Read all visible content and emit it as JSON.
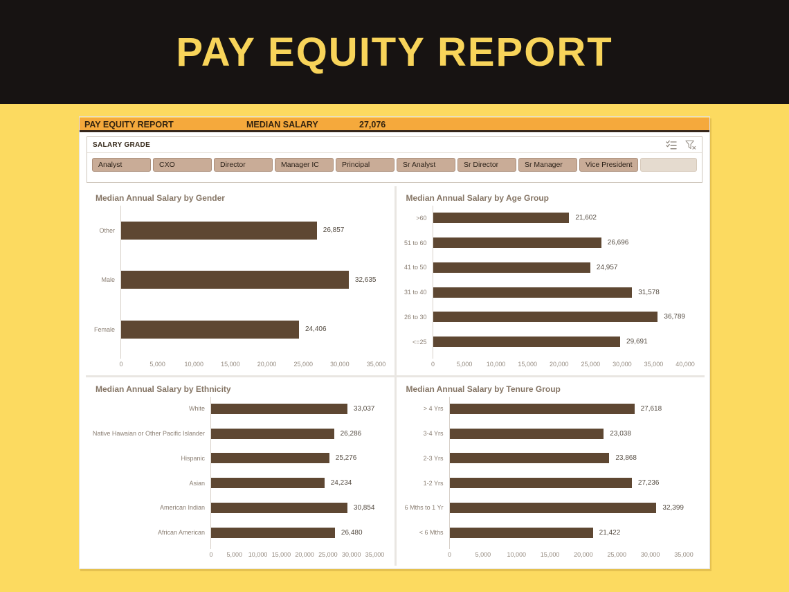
{
  "banner": {
    "title": "PAY EQUITY REPORT"
  },
  "report_header": {
    "title": "PAY EQUITY REPORT",
    "metric_label": "MEDIAN SALARY",
    "metric_value": "27,076"
  },
  "slicer": {
    "title": "SALARY GRADE",
    "options": [
      "Analyst",
      "CXO",
      "Director",
      "Manager IC",
      "Principal",
      "Sr Analyst",
      "Sr Director",
      "Sr Manager",
      "Vice President"
    ],
    "icons": [
      "multi-select-icon",
      "clear-filter-icon"
    ]
  },
  "colors": {
    "bar_brown": "#5E4732",
    "header_orange": "#F5A93C",
    "page_yellow": "#FCDA60",
    "banner_black": "#171312",
    "banner_text_yellow": "#F8D45A",
    "chip_tan": "#C9AC97"
  },
  "chart_data": [
    {
      "type": "bar",
      "orientation": "horizontal",
      "title": "Median Annual Salary by Gender",
      "categories": [
        "Other",
        "Male",
        "Female"
      ],
      "values": [
        26857,
        32635,
        24406
      ],
      "value_labels": [
        "26,857",
        "32,635",
        "24,406"
      ],
      "xlim": [
        0,
        35000
      ],
      "tick_step": 5000,
      "tick_labels": [
        "0",
        "5,000",
        "10,000",
        "15,000",
        "20,000",
        "25,000",
        "30,000",
        "35,000"
      ],
      "grid": false,
      "legend": false
    },
    {
      "type": "bar",
      "orientation": "horizontal",
      "title": "Median Annual Salary by Age Group",
      "categories": [
        ">60",
        "51 to 60",
        "41 to 50",
        "31 to 40",
        "26 to 30",
        "<=25"
      ],
      "values": [
        21602,
        26696,
        24957,
        31578,
        36789,
        29691
      ],
      "value_labels": [
        "21,602",
        "26,696",
        "24,957",
        "31,578",
        "36,789",
        "29,691"
      ],
      "xlim": [
        0,
        40000
      ],
      "tick_step": 5000,
      "tick_labels": [
        "0",
        "5,000",
        "10,000",
        "15,000",
        "20,000",
        "25,000",
        "30,000",
        "35,000",
        "40,000"
      ],
      "grid": false,
      "legend": false
    },
    {
      "type": "bar",
      "orientation": "horizontal",
      "title": "Median Annual Salary by Ethnicity",
      "categories": [
        "White",
        "Native Hawaian or Other Pacific Islander",
        "Hispanic",
        "Asian",
        "American Indian",
        "African American"
      ],
      "values": [
        33037,
        26286,
        25276,
        24234,
        30854,
        26480
      ],
      "value_labels": [
        "33,037",
        "26,286",
        "25,276",
        "24,234",
        "30,854",
        "26,480"
      ],
      "xlim": [
        0,
        35000
      ],
      "tick_step": 5000,
      "tick_labels": [
        "0",
        "5,000",
        "10,000",
        "15,000",
        "20,000",
        "25,000",
        "30,000",
        "35,000"
      ],
      "grid": false,
      "legend": false
    },
    {
      "type": "bar",
      "orientation": "horizontal",
      "title": "Median Annual Salary by Tenure Group",
      "categories": [
        "> 4 Yrs",
        "3-4 Yrs",
        "2-3 Yrs",
        "1-2 Yrs",
        "6 Mths to 1 Yr",
        "< 6 Mths"
      ],
      "values": [
        27618,
        23038,
        23868,
        27236,
        32399,
        21422
      ],
      "value_labels": [
        "27,618",
        "23,038",
        "23,868",
        "27,236",
        "32,399",
        "21,422"
      ],
      "xlim": [
        0,
        35000
      ],
      "tick_step": 5000,
      "tick_labels": [
        "0",
        "5,000",
        "10,000",
        "15,000",
        "20,000",
        "25,000",
        "30,000",
        "35,000"
      ],
      "grid": false,
      "legend": false
    }
  ]
}
